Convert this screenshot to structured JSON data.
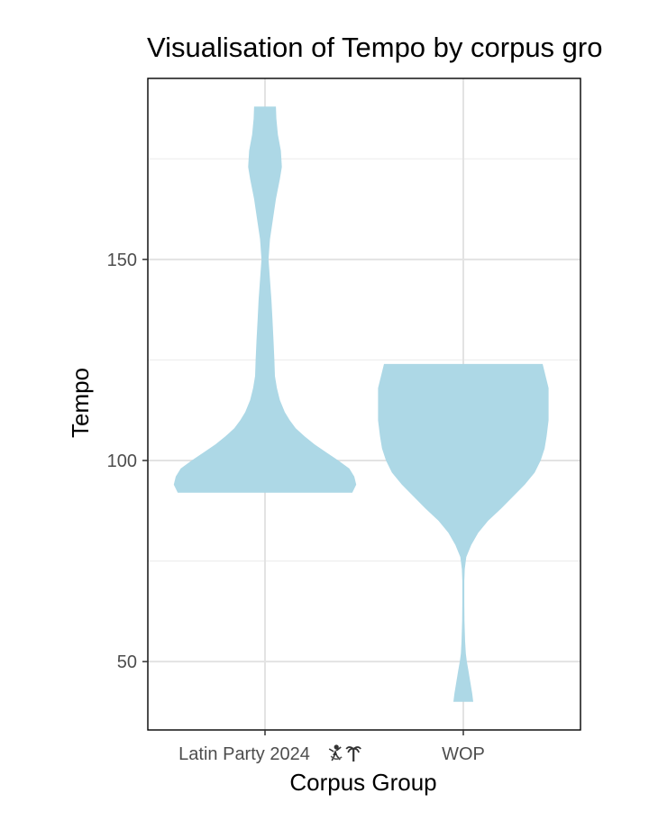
{
  "chart_data": {
    "type": "violin",
    "title": "Visualisation of Tempo by corpus gro",
    "xlabel": "Corpus Group",
    "ylabel": "Tempo",
    "categories": [
      "Latin Party 2024",
      "WOP"
    ],
    "category_icons": [
      [
        "dancer-icon",
        "palm-tree-icon"
      ],
      []
    ],
    "ylim": [
      33,
      195
    ],
    "yticks": [
      50,
      100,
      150
    ],
    "yticks_labels": [
      "50",
      "100",
      "150"
    ],
    "minor_yticks": [
      75,
      125,
      175
    ],
    "grid": true,
    "fill_color": "#add8e6",
    "series": [
      {
        "category": "Latin Party 2024",
        "range": [
          92,
          188
        ],
        "density": [
          [
            92,
            0.88
          ],
          [
            94,
            0.92
          ],
          [
            96,
            0.9
          ],
          [
            98,
            0.85
          ],
          [
            100,
            0.74
          ],
          [
            102,
            0.62
          ],
          [
            104,
            0.5
          ],
          [
            106,
            0.4
          ],
          [
            108,
            0.31
          ],
          [
            110,
            0.25
          ],
          [
            112,
            0.2
          ],
          [
            115,
            0.15
          ],
          [
            118,
            0.12
          ],
          [
            121,
            0.1
          ],
          [
            125,
            0.095
          ],
          [
            130,
            0.085
          ],
          [
            135,
            0.075
          ],
          [
            140,
            0.065
          ],
          [
            145,
            0.05
          ],
          [
            150,
            0.035
          ],
          [
            155,
            0.05
          ],
          [
            160,
            0.08
          ],
          [
            165,
            0.11
          ],
          [
            170,
            0.15
          ],
          [
            173,
            0.17
          ],
          [
            177,
            0.16
          ],
          [
            181,
            0.13
          ],
          [
            185,
            0.115
          ],
          [
            188,
            0.11
          ]
        ]
      },
      {
        "category": "WOP",
        "range": [
          40,
          124
        ],
        "density": [
          [
            40,
            0.1
          ],
          [
            42,
            0.09
          ],
          [
            45,
            0.07
          ],
          [
            48,
            0.05
          ],
          [
            50,
            0.035
          ],
          [
            52,
            0.025
          ],
          [
            55,
            0.018
          ],
          [
            60,
            0.012
          ],
          [
            65,
            0.01
          ],
          [
            70,
            0.01
          ],
          [
            73,
            0.015
          ],
          [
            76,
            0.03
          ],
          [
            79,
            0.08
          ],
          [
            82,
            0.15
          ],
          [
            85,
            0.25
          ],
          [
            88,
            0.38
          ],
          [
            91,
            0.5
          ],
          [
            94,
            0.62
          ],
          [
            97,
            0.72
          ],
          [
            100,
            0.78
          ],
          [
            103,
            0.82
          ],
          [
            106,
            0.84
          ],
          [
            110,
            0.86
          ],
          [
            114,
            0.86
          ],
          [
            118,
            0.86
          ],
          [
            121,
            0.83
          ],
          [
            124,
            0.8
          ]
        ]
      }
    ]
  }
}
